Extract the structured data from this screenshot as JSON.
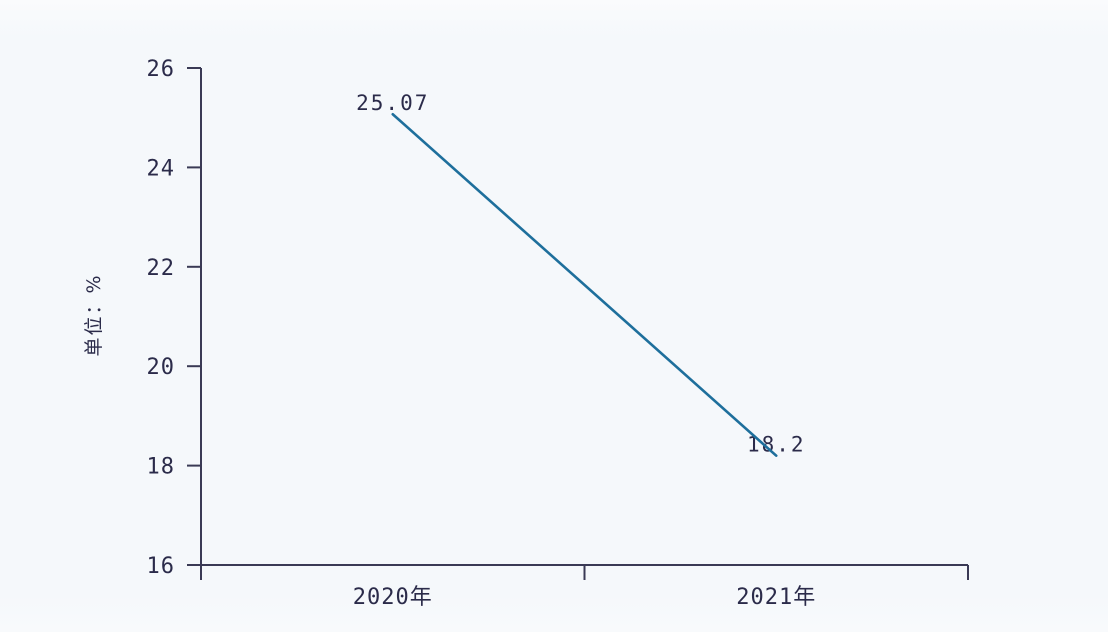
{
  "chart_data": {
    "type": "line",
    "title": "",
    "xlabel": "",
    "ylabel": "单位：%",
    "categories": [
      "2020年",
      "2021年"
    ],
    "values": [
      25.07,
      18.2
    ],
    "annotations": [
      "25.07",
      "18.2"
    ],
    "yticks": [
      16,
      18,
      20,
      22,
      24,
      26
    ],
    "ylim": [
      16,
      26
    ],
    "grid": false,
    "legend": null
  },
  "style": {
    "background": "#f5f8fb",
    "axis_color": "#3a3a55",
    "text_color": "#2b2b4a",
    "line_color": "#1e6f9c"
  }
}
